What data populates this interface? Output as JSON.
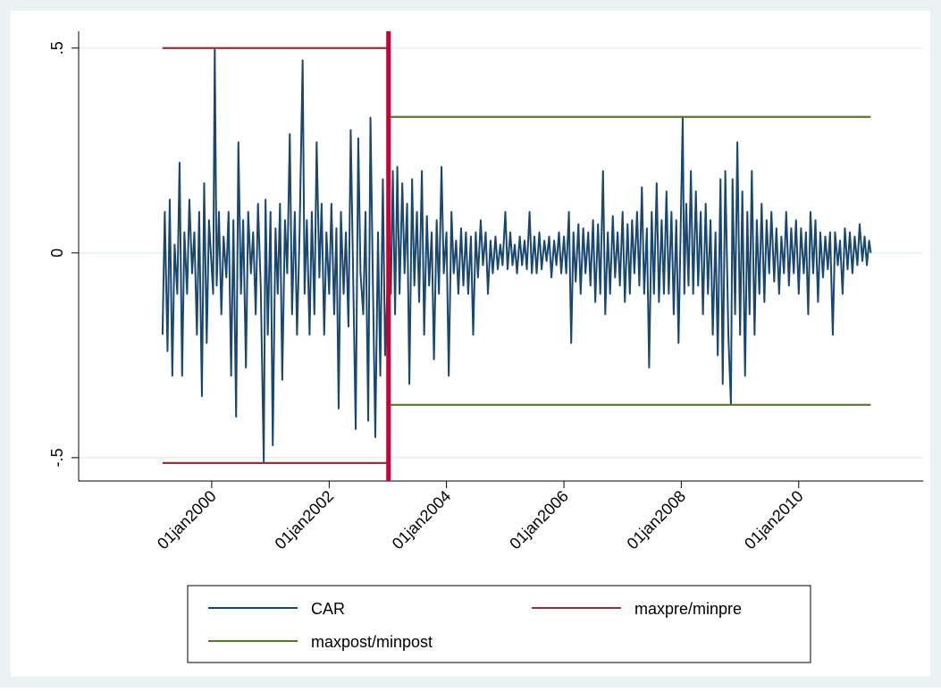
{
  "chart_data": {
    "type": "line",
    "xlim": [
      "1997-09-25",
      "2012-02-14"
    ],
    "xticks": [
      {
        "value": "2000-01-01",
        "label": "01jan2000"
      },
      {
        "value": "2002-01-01",
        "label": "01jan2002"
      },
      {
        "value": "2004-01-01",
        "label": "01jan2004"
      },
      {
        "value": "2006-01-01",
        "label": "01jan2006"
      },
      {
        "value": "2008-01-01",
        "label": "01jan2008"
      },
      {
        "value": "2010-01-01",
        "label": "01jan2010"
      }
    ],
    "ylim": [
      -0.557,
      0.541
    ],
    "yticks": [
      {
        "value": -0.5,
        "label": "-.5"
      },
      0,
      {
        "value": 0.5,
        "label": ".5"
      }
    ],
    "grid": true,
    "xline": "2003-01-05",
    "xline_color": "#c10534",
    "series": [
      {
        "name": "CAR",
        "color": "#1a476f",
        "x": [
          "1999-03-01",
          "1999-03-15",
          "1999-04-01",
          "1999-04-15",
          "1999-05-01",
          "1999-05-15",
          "1999-06-01",
          "1999-06-15",
          "1999-07-01",
          "1999-07-15",
          "1999-08-01",
          "1999-08-15",
          "1999-09-01",
          "1999-09-15",
          "1999-10-01",
          "1999-10-15",
          "1999-11-01",
          "1999-11-15",
          "1999-12-01",
          "1999-12-15",
          "2000-01-10",
          "2000-01-20",
          "2000-02-01",
          "2000-02-15",
          "2000-03-01",
          "2000-03-15",
          "2000-04-01",
          "2000-04-15",
          "2000-05-01",
          "2000-05-15",
          "2000-06-01",
          "2000-06-15",
          "2000-07-01",
          "2000-07-15",
          "2000-08-01",
          "2000-08-15",
          "2000-09-01",
          "2000-09-15",
          "2000-10-01",
          "2000-10-15",
          "2000-11-01",
          "2000-11-20",
          "2000-12-01",
          "2000-12-15",
          "2001-01-01",
          "2001-01-15",
          "2001-02-01",
          "2001-02-15",
          "2001-03-01",
          "2001-03-15",
          "2001-04-01",
          "2001-04-15",
          "2001-05-01",
          "2001-05-15",
          "2001-06-01",
          "2001-06-15",
          "2001-07-01",
          "2001-07-20",
          "2001-08-01",
          "2001-08-15",
          "2001-09-01",
          "2001-09-15",
          "2001-10-01",
          "2001-10-15",
          "2001-11-01",
          "2001-11-15",
          "2001-12-01",
          "2001-12-15",
          "2002-01-01",
          "2002-01-15",
          "2002-02-01",
          "2002-02-15",
          "2002-03-01",
          "2002-03-15",
          "2002-04-01",
          "2002-04-15",
          "2002-05-01",
          "2002-05-15",
          "2002-06-01",
          "2002-06-15",
          "2002-07-01",
          "2002-07-15",
          "2002-08-01",
          "2002-08-15",
          "2002-09-01",
          "2002-09-15",
          "2002-10-01",
          "2002-10-15",
          "2002-11-01",
          "2002-11-15",
          "2002-12-01",
          "2002-12-15",
          "2003-01-10",
          "2003-01-20",
          "2003-02-01",
          "2003-02-15",
          "2003-03-01",
          "2003-03-15",
          "2003-04-01",
          "2003-04-15",
          "2003-05-01",
          "2003-05-15",
          "2003-06-01",
          "2003-06-15",
          "2003-07-01",
          "2003-07-15",
          "2003-08-01",
          "2003-08-15",
          "2003-09-01",
          "2003-09-15",
          "2003-10-01",
          "2003-10-15",
          "2003-11-01",
          "2003-11-15",
          "2003-12-01",
          "2003-12-15",
          "2004-01-01",
          "2004-01-15",
          "2004-02-01",
          "2004-02-15",
          "2004-03-01",
          "2004-03-15",
          "2004-04-01",
          "2004-04-15",
          "2004-05-01",
          "2004-05-15",
          "2004-06-01",
          "2004-06-15",
          "2004-07-01",
          "2004-07-15",
          "2004-08-01",
          "2004-08-15",
          "2004-09-01",
          "2004-09-15",
          "2004-10-01",
          "2004-10-15",
          "2004-11-01",
          "2004-11-15",
          "2004-12-01",
          "2004-12-15",
          "2005-01-01",
          "2005-01-15",
          "2005-02-01",
          "2005-02-15",
          "2005-03-01",
          "2005-03-15",
          "2005-04-01",
          "2005-04-15",
          "2005-05-01",
          "2005-05-15",
          "2005-06-01",
          "2005-06-15",
          "2005-07-01",
          "2005-07-15",
          "2005-08-01",
          "2005-08-15",
          "2005-09-01",
          "2005-09-15",
          "2005-10-01",
          "2005-10-15",
          "2005-11-01",
          "2005-11-15",
          "2005-12-01",
          "2005-12-15",
          "2006-01-01",
          "2006-01-15",
          "2006-02-01",
          "2006-02-15",
          "2006-03-01",
          "2006-03-15",
          "2006-04-01",
          "2006-04-15",
          "2006-05-01",
          "2006-05-15",
          "2006-06-01",
          "2006-06-15",
          "2006-07-01",
          "2006-07-15",
          "2006-08-01",
          "2006-08-15",
          "2006-09-01",
          "2006-09-15",
          "2006-10-01",
          "2006-10-15",
          "2006-11-01",
          "2006-11-15",
          "2006-12-01",
          "2006-12-15",
          "2007-01-01",
          "2007-01-15",
          "2007-02-01",
          "2007-02-15",
          "2007-03-01",
          "2007-03-15",
          "2007-04-01",
          "2007-04-15",
          "2007-05-01",
          "2007-05-15",
          "2007-06-01",
          "2007-06-15",
          "2007-07-01",
          "2007-07-15",
          "2007-08-01",
          "2007-08-15",
          "2007-09-01",
          "2007-09-15",
          "2007-10-01",
          "2007-10-15",
          "2007-11-01",
          "2007-11-15",
          "2007-12-01",
          "2007-12-15",
          "2008-01-10",
          "2008-01-20",
          "2008-02-01",
          "2008-02-15",
          "2008-03-01",
          "2008-03-15",
          "2008-04-01",
          "2008-04-15",
          "2008-05-01",
          "2008-05-15",
          "2008-06-01",
          "2008-06-15",
          "2008-07-01",
          "2008-07-15",
          "2008-08-01",
          "2008-08-15",
          "2008-09-01",
          "2008-09-15",
          "2008-10-01",
          "2008-10-20",
          "2008-11-05",
          "2008-11-15",
          "2008-12-01",
          "2008-12-15",
          "2009-01-01",
          "2009-01-15",
          "2009-02-01",
          "2009-02-15",
          "2009-03-01",
          "2009-03-15",
          "2009-04-01",
          "2009-04-15",
          "2009-05-01",
          "2009-05-15",
          "2009-06-01",
          "2009-06-15",
          "2009-07-01",
          "2009-07-15",
          "2009-08-01",
          "2009-08-15",
          "2009-09-01",
          "2009-09-15",
          "2009-10-01",
          "2009-10-15",
          "2009-11-01",
          "2009-11-15",
          "2009-12-01",
          "2009-12-15",
          "2010-01-01",
          "2010-01-15",
          "2010-02-01",
          "2010-02-15",
          "2010-03-01",
          "2010-03-15",
          "2010-04-01",
          "2010-04-15",
          "2010-05-01",
          "2010-05-15",
          "2010-06-01",
          "2010-06-15",
          "2010-07-01",
          "2010-07-15",
          "2010-08-01",
          "2010-08-15",
          "2010-09-01",
          "2010-09-15",
          "2010-10-01",
          "2010-10-15",
          "2010-11-01",
          "2010-11-15",
          "2010-12-01",
          "2010-12-15",
          "2011-01-01",
          "2011-01-15",
          "2011-02-01",
          "2011-02-15",
          "2011-03-01",
          "2011-03-15",
          "2011-03-25"
        ],
        "values": [
          -0.2,
          0.1,
          -0.24,
          0.13,
          -0.3,
          0.02,
          -0.1,
          0.22,
          -0.3,
          0.05,
          -0.1,
          0.13,
          -0.05,
          0.05,
          -0.2,
          0.1,
          -0.35,
          0.17,
          -0.22,
          0.08,
          -0.1,
          0.5,
          -0.08,
          0.1,
          -0.15,
          0.04,
          -0.06,
          0.1,
          -0.3,
          0.08,
          -0.4,
          0.27,
          -0.1,
          0.08,
          -0.28,
          0.1,
          -0.05,
          0.05,
          -0.15,
          0.12,
          -0.08,
          -0.51,
          0.13,
          -0.2,
          0.1,
          -0.47,
          0.06,
          -0.1,
          0.12,
          -0.31,
          0.08,
          -0.05,
          0.29,
          -0.15,
          0.1,
          -0.2,
          0.05,
          0.47,
          -0.1,
          0.08,
          -0.2,
          0.1,
          -0.15,
          0.27,
          -0.06,
          0.12,
          -0.2,
          0.05,
          -0.1,
          0.12,
          -0.15,
          0.06,
          -0.38,
          0.1,
          -0.1,
          0.05,
          -0.18,
          0.3,
          -0.1,
          -0.43,
          0.28,
          -0.05,
          -0.15,
          0.1,
          -0.41,
          0.33,
          -0.1,
          -0.45,
          0.05,
          -0.3,
          0.18,
          -0.25,
          0.05,
          -0.1,
          0.2,
          -0.15,
          0.21,
          -0.1,
          0.17,
          -0.05,
          0.12,
          -0.32,
          0.18,
          -0.08,
          0.1,
          -0.12,
          0.2,
          -0.2,
          0.09,
          -0.08,
          0.05,
          -0.26,
          0.08,
          -0.1,
          0.21,
          -0.05,
          0.05,
          -0.3,
          0.1,
          -0.05,
          0.03,
          -0.1,
          0.06,
          -0.08,
          0.05,
          -0.1,
          0.04,
          -0.2,
          0.05,
          -0.06,
          0.08,
          -0.03,
          0.05,
          -0.1,
          0.03,
          -0.05,
          0.04,
          -0.04,
          0.02,
          -0.03,
          0.1,
          -0.04,
          0.05,
          -0.03,
          0.02,
          -0.05,
          0.04,
          -0.03,
          0.03,
          -0.04,
          0.1,
          -0.05,
          0.04,
          -0.05,
          0.05,
          -0.04,
          0.03,
          -0.02,
          0.04,
          -0.06,
          0.03,
          -0.03,
          0.05,
          -0.05,
          0.04,
          -0.05,
          0.1,
          -0.22,
          0.05,
          -0.07,
          0.07,
          -0.1,
          0.06,
          -0.05,
          0.05,
          -0.08,
          0.08,
          -0.12,
          0.07,
          -0.1,
          0.2,
          -0.15,
          0.05,
          -0.1,
          0.09,
          -0.06,
          0.05,
          -0.08,
          0.1,
          -0.12,
          0.07,
          -0.1,
          0.08,
          -0.05,
          0.1,
          -0.08,
          0.16,
          -0.1,
          0.06,
          -0.28,
          0.1,
          -0.1,
          0.17,
          -0.12,
          0.08,
          -0.1,
          0.15,
          -0.1,
          0.1,
          -0.15,
          0.08,
          -0.22,
          0.33,
          -0.1,
          0.12,
          -0.08,
          0.2,
          -0.1,
          0.15,
          -0.08,
          0.1,
          -0.15,
          0.12,
          -0.1,
          0.08,
          -0.2,
          0.05,
          -0.25,
          0.18,
          -0.32,
          0.2,
          -0.2,
          -0.37,
          0.18,
          -0.15,
          0.27,
          -0.2,
          0.15,
          -0.3,
          0.1,
          -0.15,
          0.2,
          -0.2,
          0.08,
          -0.1,
          0.12,
          -0.12,
          0.08,
          -0.05,
          0.1,
          -0.07,
          0.06,
          -0.1,
          0.04,
          -0.05,
          0.1,
          -0.08,
          0.06,
          -0.05,
          0.08,
          -0.1,
          0.06,
          -0.05,
          0.05,
          -0.15,
          0.1,
          -0.05,
          0.08,
          -0.12,
          0.05,
          -0.06,
          0.04,
          -0.04,
          0.05,
          -0.2,
          0.05,
          -0.03,
          0.03,
          -0.1,
          0.06,
          -0.04,
          0.05,
          -0.05,
          0.04,
          -0.03,
          0.07,
          -0.02,
          0.04,
          -0.03,
          0.03,
          0.0
        ]
      },
      {
        "name": "maxpre/minpre",
        "color": "#90353b",
        "x": [
          "1999-03-01",
          "2003-01-05",
          "1999-03-01",
          "1999-03-01",
          "2003-01-05"
        ],
        "values": [
          0.5,
          0.5,
          null,
          -0.513,
          -0.513
        ]
      },
      {
        "name": "maxpost/minpost",
        "color": "#55752f",
        "x": [
          "2003-01-05",
          "2011-03-25",
          "2003-01-05",
          "2003-01-05",
          "2011-03-25"
        ],
        "values": [
          0.332,
          0.332,
          null,
          -0.371,
          -0.371
        ]
      }
    ]
  }
}
